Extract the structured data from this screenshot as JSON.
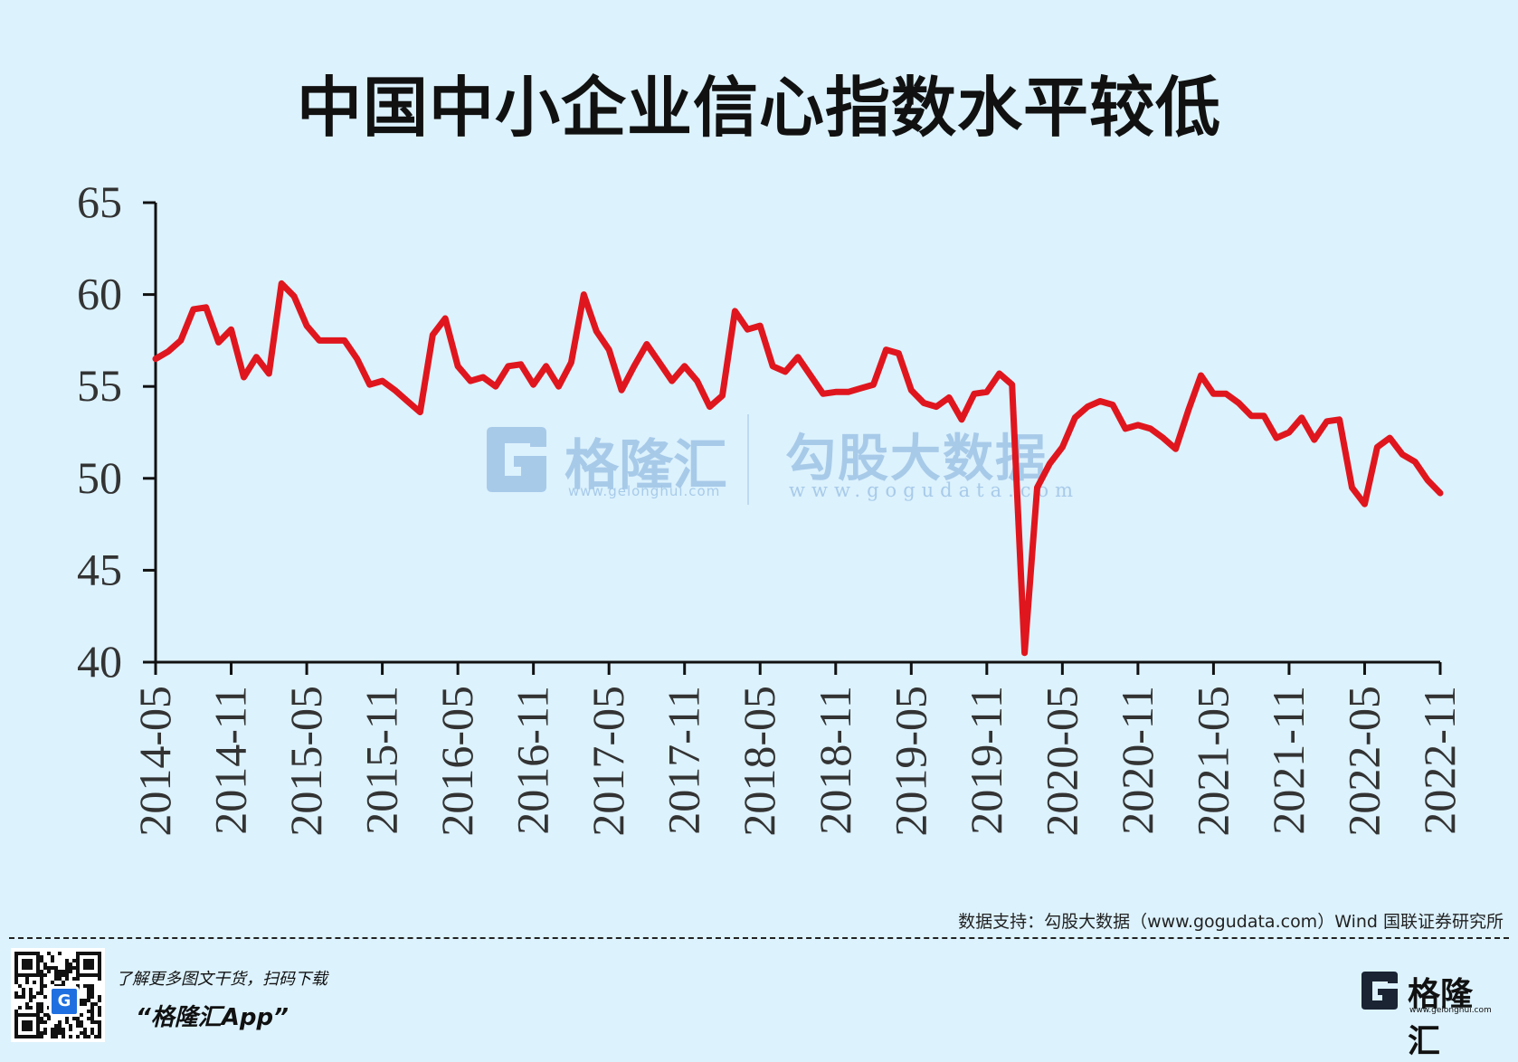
{
  "chart_data": {
    "type": "line",
    "title": "中国中小企业信心指数水平较低",
    "xlabel": "",
    "ylabel": "",
    "ylim": [
      40,
      65
    ],
    "yticks": [
      "40",
      "45",
      "50",
      "55",
      "60",
      "65"
    ],
    "x_tick_labels": [
      "2014-05",
      "2014-11",
      "2015-05",
      "2015-11",
      "2016-05",
      "2016-11",
      "2017-05",
      "2017-11",
      "2018-05",
      "2018-11",
      "2019-05",
      "2019-11",
      "2020-05",
      "2020-11",
      "2021-05",
      "2021-11",
      "2022-05",
      "2022-11"
    ],
    "x_start": "2014-05",
    "x_end": "2022-11",
    "grid": false,
    "legend": "none",
    "line_color": "#e0161e",
    "series": [
      {
        "values": [
          56.5,
          56.9,
          57.5,
          59.2,
          59.3,
          57.4,
          58.1,
          55.5,
          56.6,
          55.7,
          60.6,
          59.9,
          58.3,
          57.5,
          57.5,
          57.5,
          56.5,
          55.1,
          55.3,
          54.8,
          54.2,
          53.6,
          57.8,
          58.7,
          56.1,
          55.3,
          55.5,
          55.0,
          56.1,
          56.2,
          55.1,
          56.1,
          55.0,
          56.3,
          60.0,
          58.0,
          57.0,
          54.8,
          56.1,
          57.3,
          56.3,
          55.3,
          56.1,
          55.3,
          53.9,
          54.5,
          59.1,
          58.1,
          58.3,
          56.1,
          55.8,
          56.6,
          55.6,
          54.6,
          54.7,
          54.7,
          54.9,
          55.1,
          57.0,
          56.8,
          54.8,
          54.1,
          53.9,
          54.4,
          53.2,
          54.6,
          54.7,
          55.7,
          55.1,
          40.5,
          49.5,
          50.8,
          51.7,
          53.3,
          53.9,
          54.2,
          54.0,
          52.7,
          52.9,
          52.7,
          52.2,
          51.6,
          53.7,
          55.6,
          54.6,
          54.6,
          54.1,
          53.4,
          53.4,
          52.2,
          52.5,
          53.3,
          52.1,
          53.1,
          53.2,
          49.5,
          48.6,
          51.7,
          52.2,
          51.3,
          50.9,
          49.9,
          49.2
        ]
      }
    ]
  },
  "source_note": "数据支持：勾股大数据（www.gogudata.com）Wind 国联证券研究所",
  "promo": {
    "line1": "了解更多图文干货，扫码下载",
    "app": "“格隆汇App”"
  },
  "brand": {
    "name": "格隆汇",
    "url": "www.gelonghui.com",
    "mark_letter": "G"
  },
  "watermark": {
    "name": "格隆汇",
    "url": "www.gelonghui.com",
    "gogu_name": "勾股大数据",
    "gogu_url": "www.gogudata.com"
  },
  "colors": {
    "background": "#dcf2fd",
    "line": "#e0161e",
    "axis": "#111111",
    "watermark": "#9fc4e6"
  }
}
